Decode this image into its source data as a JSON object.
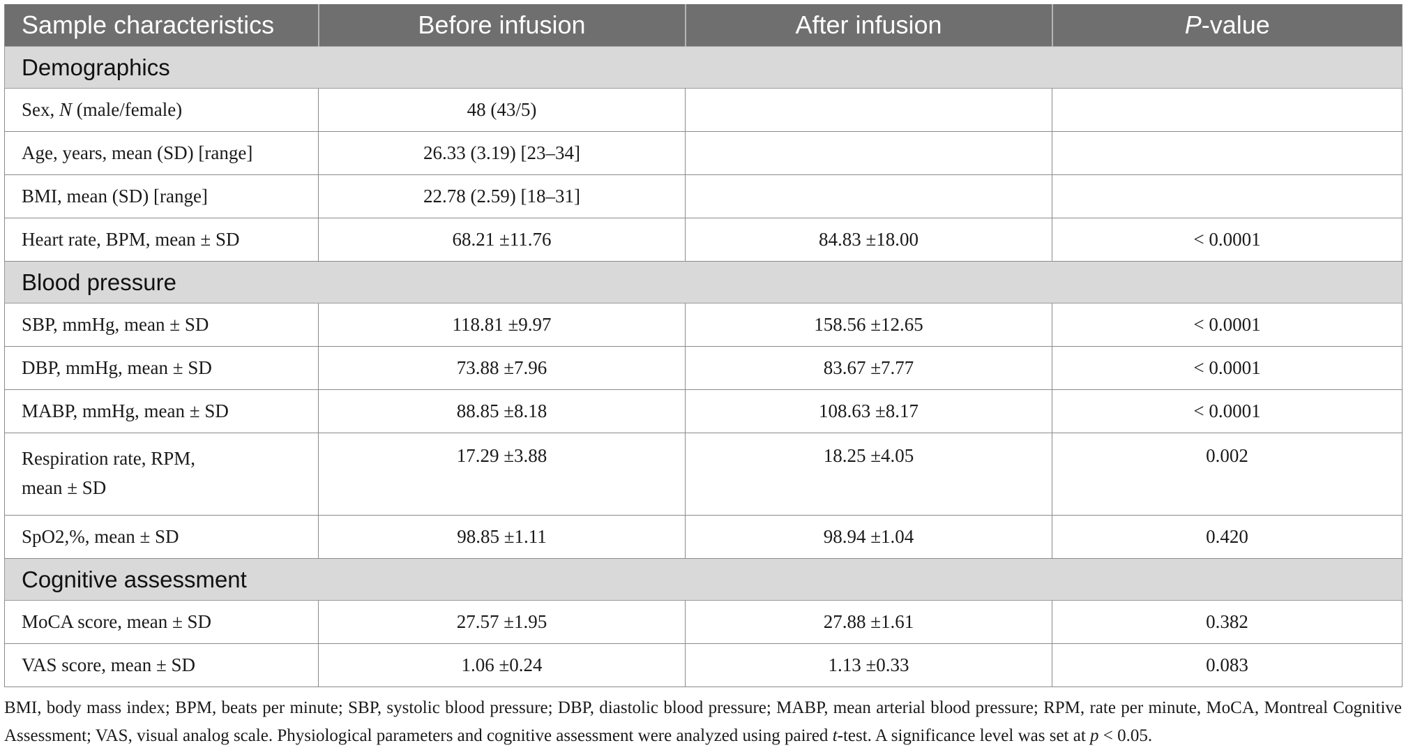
{
  "header": {
    "col1": "Sample characteristics",
    "col2": "Before infusion",
    "col3": "After infusion",
    "col4_italic": "P",
    "col4_rest": "-value"
  },
  "sections": {
    "demographics": "Demographics",
    "blood_pressure": "Blood pressure",
    "cognitive": "Cognitive assessment"
  },
  "rows": {
    "sex": {
      "label_pre": "Sex, ",
      "label_ital": "N",
      "label_post": " (male/female)",
      "before": "48 (43/5)",
      "after": "",
      "p": ""
    },
    "age": {
      "label": "Age, years, mean (SD) [range]",
      "before": "26.33 (3.19) [23–34]",
      "after": "",
      "p": ""
    },
    "bmi": {
      "label": "BMI, mean (SD) [range]",
      "before": "22.78 (2.59) [18–31]",
      "after": "",
      "p": ""
    },
    "hr": {
      "label": "Heart rate, BPM, mean ± SD",
      "before": "68.21 ±11.76",
      "after": "84.83 ±18.00",
      "p": "< 0.0001"
    },
    "sbp": {
      "label": "SBP, mmHg, mean ± SD",
      "before": "118.81 ±9.97",
      "after": "158.56 ±12.65",
      "p": "< 0.0001"
    },
    "dbp": {
      "label": "DBP, mmHg, mean ± SD",
      "before": "73.88 ±7.96",
      "after": "83.67 ±7.77",
      "p": "< 0.0001"
    },
    "mabp": {
      "label": "MABP, mmHg, mean ± SD",
      "before": "88.85 ±8.18",
      "after": "108.63 ±8.17",
      "p": "< 0.0001"
    },
    "resp": {
      "label_line1": "Respiration rate, RPM,",
      "label_line2": "mean ± SD",
      "before": "17.29 ±3.88",
      "after": "18.25 ±4.05",
      "p": "0.002"
    },
    "spo2": {
      "label": "SpO2,%, mean ± SD",
      "before": "98.85 ±1.11",
      "after": "98.94 ±1.04",
      "p": "0.420"
    },
    "moca": {
      "label": "MoCA score, mean ± SD",
      "before": "27.57 ±1.95",
      "after": "27.88 ±1.61",
      "p": "0.382"
    },
    "vas": {
      "label": "VAS score, mean ± SD",
      "before": "1.06 ±0.24",
      "after": "1.13 ±0.33",
      "p": "0.083"
    }
  },
  "footnote": {
    "part1": "BMI, body mass index; BPM, beats per minute; SBP, systolic blood pressure; DBP, diastolic blood pressure; MABP, mean arterial blood pressure; RPM, rate per minute, MoCA, Montreal Cognitive Assessment; VAS, visual analog scale. Physiological parameters and cognitive assessment were analyzed using paired ",
    "t": "t",
    "part2": "-test. A significance level was set at ",
    "p": "p",
    "part3": " < 0.05."
  }
}
